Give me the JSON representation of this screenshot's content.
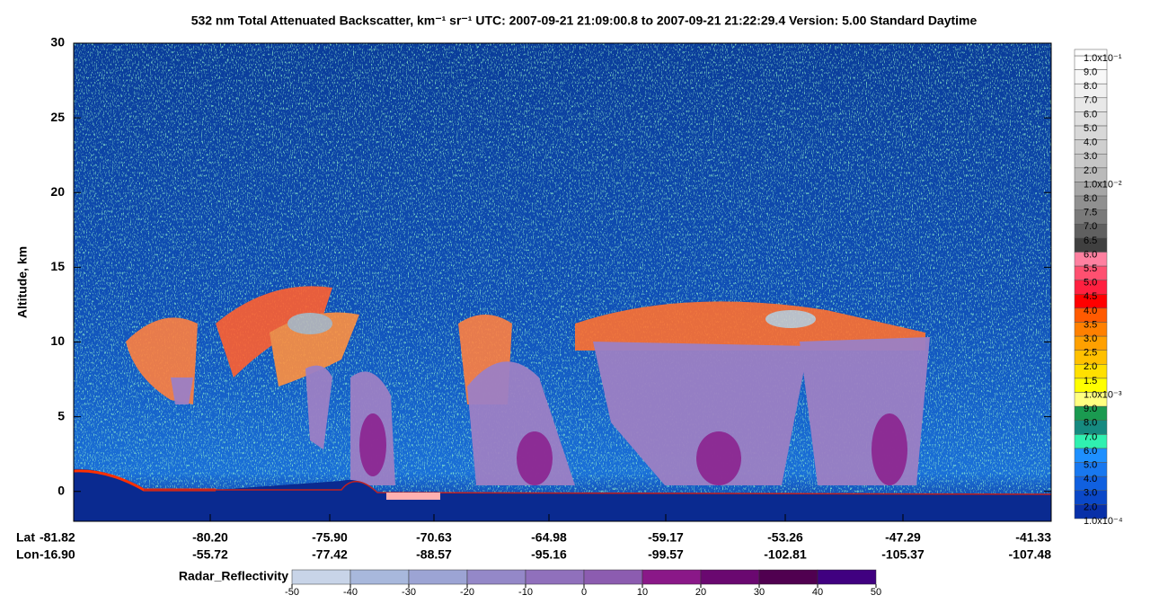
{
  "chart_data": {
    "type": "curtain",
    "title": "532 nm Total Attenuated Backscatter, km⁻¹ sr⁻¹    UTC:  2007-09-21 21:09:00.8  to  2007-09-21 21:22:29.4    Version: 5.00  Standard  Daytime",
    "y_label": "Altitude, km",
    "ylim": [
      -2,
      30
    ],
    "yticks": [
      0,
      5,
      10,
      15,
      20,
      25,
      30
    ],
    "x_row_labels": [
      "Lat",
      "Lon"
    ],
    "lat_ticks": [
      "-81.82",
      "-80.20",
      "-75.90",
      "-70.63",
      "-64.98",
      "-59.17",
      "-53.26",
      "-47.29",
      "-41.33"
    ],
    "lon_ticks": [
      "-16.90",
      "-55.72",
      "-77.42",
      "-88.57",
      "-95.16",
      "-99.57",
      "-102.81",
      "-105.37",
      "-107.48"
    ],
    "colorbar_labels": [
      "1.0x10⁻¹",
      "9.0",
      "8.0",
      "7.0",
      "6.0",
      "5.0",
      "4.0",
      "3.0",
      "2.0",
      "1.0x10⁻²",
      "8.0",
      "7.5",
      "7.0",
      "6.5",
      "6.0",
      "5.5",
      "5.0",
      "4.5",
      "4.0",
      "3.5",
      "3.0",
      "2.5",
      "2.0",
      "1.5",
      "1.0x10⁻³",
      "9.0",
      "8.0",
      "7.0",
      "6.0",
      "5.0",
      "4.0",
      "3.0",
      "2.0",
      "1.0x10⁻⁴"
    ],
    "colorbar_colors": [
      "#ffffff",
      "#f8f8f8",
      "#f0f0f0",
      "#e8e8e8",
      "#e0e0e0",
      "#d8d8d8",
      "#cfcfcf",
      "#c6c6c6",
      "#bababa",
      "#a6a6a6",
      "#909090",
      "#7a7a7a",
      "#606060",
      "#404040",
      "#ff80a0",
      "#ff5070",
      "#ff2040",
      "#ff0000",
      "#ff5a00",
      "#ff8000",
      "#ffa000",
      "#ffc000",
      "#ffe000",
      "#ffff00",
      "#ffff80",
      "#1a9a50",
      "#168a80",
      "#30f0b0",
      "#1e90ff",
      "#1878f0",
      "#1060e0",
      "#0a48c8",
      "#0830a8"
    ],
    "radar_label": "Radar_Reflectivity",
    "radar_ticks": [
      -50,
      -40,
      -30,
      -20,
      -10,
      0,
      10,
      20,
      30,
      40,
      50
    ],
    "radar_colors": [
      "#c8d4e8",
      "#a8b8dc",
      "#9ca4d4",
      "#9488c8",
      "#9070bc",
      "#8c5cb0",
      "#8a1888",
      "#6a0870",
      "#500050",
      "#400080"
    ]
  }
}
